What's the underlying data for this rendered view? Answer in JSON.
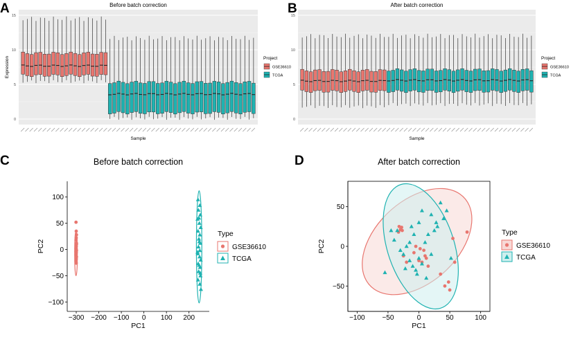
{
  "colors": {
    "gse": "#E8766F",
    "tcga": "#1FB2B1",
    "gse_light": "#F8D9D6",
    "tcga_light": "#CDEFEE",
    "panel_bg": "#EBEBEB",
    "grid": "#FFFFFF",
    "axis_text": "#4D4D4D",
    "text": "#000000"
  },
  "chart_data": [
    {
      "panel": "A",
      "type": "box",
      "title": "Before batch correction",
      "xlabel": "Sample",
      "ylabel": "Expression",
      "ylim": [
        -0.8,
        15.8
      ],
      "yticks": [
        0,
        5,
        10,
        15
      ],
      "legend": {
        "title": "Project",
        "entries": [
          "GSE36610",
          "TCGA"
        ],
        "position": "right"
      },
      "groups": [
        {
          "name": "GSE36610",
          "n": 20,
          "min": 5.4,
          "q1": 6.3,
          "median": 7.7,
          "q3": 9.5,
          "max": 14.5
        },
        {
          "name": "TCGA",
          "n": 34,
          "min": 0.1,
          "q1": 0.9,
          "median": 3.6,
          "q3": 5.3,
          "max": 11.7
        }
      ]
    },
    {
      "panel": "B",
      "type": "box",
      "title": "After batch correction",
      "xlabel": "Sample",
      "ylabel": "",
      "ylim": [
        -0.8,
        15.8
      ],
      "yticks": [
        0,
        5,
        10,
        15
      ],
      "legend": {
        "title": "Project",
        "entries": [
          "GSE36610",
          "TCGA"
        ],
        "position": "right"
      },
      "groups": [
        {
          "name": "GSE36610",
          "n": 20,
          "min": 1.8,
          "q1": 4.0,
          "median": 5.5,
          "q3": 7.0,
          "max": 12.0
        },
        {
          "name": "TCGA",
          "n": 34,
          "min": 2.1,
          "q1": 4.0,
          "median": 5.6,
          "q3": 7.1,
          "max": 12.0
        }
      ]
    },
    {
      "panel": "C",
      "type": "scatter",
      "title": "Before batch correction",
      "xlabel": "PC1",
      "ylabel": "PC2",
      "xlim": [
        -340,
        290
      ],
      "ylim": [
        -118,
        130
      ],
      "xticks": [
        -300,
        -200,
        -100,
        0,
        100,
        200
      ],
      "yticks": [
        -100,
        -50,
        0,
        50,
        100
      ],
      "legend": {
        "title": "Type",
        "entries": [
          "GSE36610",
          "TCGA"
        ],
        "position": "right"
      },
      "series": [
        {
          "name": "GSE36610",
          "marker": "circle",
          "points": [
            [
              -301,
              52
            ],
            [
              -300,
              35
            ],
            [
              -299,
              28
            ],
            [
              -300,
              22
            ],
            [
              -301,
              18
            ],
            [
              -299,
              12
            ],
            [
              -300,
              6
            ],
            [
              -301,
              2
            ],
            [
              -299,
              -2
            ],
            [
              -300,
              -6
            ],
            [
              -301,
              -10
            ],
            [
              -299,
              -14
            ],
            [
              -300,
              -18
            ],
            [
              -301,
              -22
            ],
            [
              -300,
              -26
            ],
            [
              -299,
              10
            ],
            [
              -301,
              -4
            ],
            [
              -300,
              0
            ]
          ],
          "ellipse": {
            "cx": -301,
            "cy": -7,
            "rx": 6,
            "ry": 43,
            "angle": 0
          }
        },
        {
          "name": "TCGA",
          "marker": "triangle",
          "points": [
            [
              240,
              95
            ],
            [
              248,
              84
            ],
            [
              242,
              75
            ],
            [
              250,
              66
            ],
            [
              238,
              58
            ],
            [
              246,
              50
            ],
            [
              252,
              42
            ],
            [
              240,
              35
            ],
            [
              248,
              28
            ],
            [
              244,
              20
            ],
            [
              250,
              12
            ],
            [
              242,
              5
            ],
            [
              248,
              -2
            ],
            [
              239,
              -8
            ],
            [
              247,
              -14
            ],
            [
              252,
              -20
            ],
            [
              241,
              -27
            ],
            [
              249,
              -34
            ],
            [
              243,
              -42
            ],
            [
              251,
              -50
            ],
            [
              240,
              -58
            ],
            [
              248,
              -66
            ],
            [
              253,
              -76
            ],
            [
              245,
              -30
            ],
            [
              238,
              -5
            ],
            [
              246,
              15
            ],
            [
              244,
              60
            ],
            [
              250,
              -45
            ]
          ],
          "ellipse": {
            "cx": 245,
            "cy": 5,
            "rx": 12,
            "ry": 107,
            "angle": 0
          }
        }
      ]
    },
    {
      "panel": "D",
      "type": "scatter",
      "title": "After batch correction",
      "xlabel": "PC1",
      "ylabel": "PC2",
      "xlim": [
        -115,
        115
      ],
      "ylim": [
        -82,
        82
      ],
      "xticks": [
        -100,
        -50,
        0,
        50,
        100
      ],
      "yticks": [
        -50,
        0,
        50
      ],
      "legend": {
        "title": "Type",
        "entries": [
          "GSE36610",
          "TCGA"
        ],
        "position": "right"
      },
      "series": [
        {
          "name": "GSE36610",
          "marker": "circle",
          "points": [
            [
              -32,
              25
            ],
            [
              -28,
              24
            ],
            [
              -30,
              21
            ],
            [
              -33,
              18
            ],
            [
              -27,
              20
            ],
            [
              -5,
              0
            ],
            [
              2,
              -3
            ],
            [
              8,
              -5
            ],
            [
              12,
              -15
            ],
            [
              -20,
              -20
            ],
            [
              -25,
              -12
            ],
            [
              0,
              -18
            ],
            [
              5,
              -20
            ],
            [
              15,
              -25
            ],
            [
              35,
              -35
            ],
            [
              42,
              -50
            ],
            [
              48,
              -45
            ],
            [
              50,
              -55
            ],
            [
              55,
              10
            ],
            [
              58,
              -20
            ],
            [
              78,
              18
            ],
            [
              -8,
              -8
            ],
            [
              10,
              -12
            ]
          ],
          "ellipse": {
            "cx": -3,
            "cy": 6,
            "rx": 96,
            "ry": 56,
            "angle": 28
          }
        },
        {
          "name": "TCGA",
          "marker": "triangle",
          "points": [
            [
              -45,
              20
            ],
            [
              -40,
              8
            ],
            [
              -30,
              -5
            ],
            [
              -55,
              -33
            ],
            [
              -25,
              -10
            ],
            [
              -20,
              0
            ],
            [
              -15,
              -18
            ],
            [
              -10,
              -25
            ],
            [
              -5,
              -30
            ],
            [
              0,
              -15
            ],
            [
              5,
              -22
            ],
            [
              10,
              5
            ],
            [
              15,
              15
            ],
            [
              20,
              -10
            ],
            [
              25,
              20
            ],
            [
              30,
              25
            ],
            [
              35,
              55
            ],
            [
              40,
              35
            ],
            [
              45,
              45
            ],
            [
              -35,
              20
            ],
            [
              -12,
              25
            ],
            [
              0,
              30
            ],
            [
              5,
              45
            ],
            [
              20,
              40
            ],
            [
              -22,
              -28
            ],
            [
              -3,
              -35
            ],
            [
              28,
              30
            ],
            [
              52,
              -15
            ],
            [
              12,
              -40
            ],
            [
              -15,
              5
            ],
            [
              -8,
              15
            ]
          ],
          "ellipse": {
            "cx": 3,
            "cy": 0,
            "rx": 85,
            "ry": 52,
            "angle": -62
          }
        }
      ]
    }
  ],
  "panel_labels": [
    "A",
    "B",
    "C",
    "D"
  ]
}
